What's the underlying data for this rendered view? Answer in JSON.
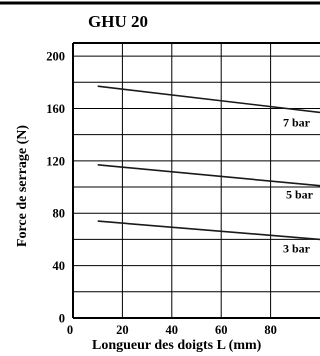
{
  "chart_data": {
    "type": "line",
    "title": "GHU 20",
    "xlabel": "Longueur  des doigts L (mm)",
    "ylabel": "Force de serrage (N)",
    "xlim": [
      0,
      100
    ],
    "ylim": [
      0,
      210
    ],
    "xticks": [
      0,
      20,
      40,
      60,
      80
    ],
    "yticks": [
      0,
      40,
      80,
      120,
      160,
      200
    ],
    "grid": true,
    "series": [
      {
        "name": "7 bar",
        "x": [
          10,
          100
        ],
        "y": [
          177,
          157
        ]
      },
      {
        "name": "5 bar",
        "x": [
          10,
          100
        ],
        "y": [
          117,
          101
        ]
      },
      {
        "name": "3 bar",
        "x": [
          10,
          100
        ],
        "y": [
          74,
          60
        ]
      }
    ]
  }
}
